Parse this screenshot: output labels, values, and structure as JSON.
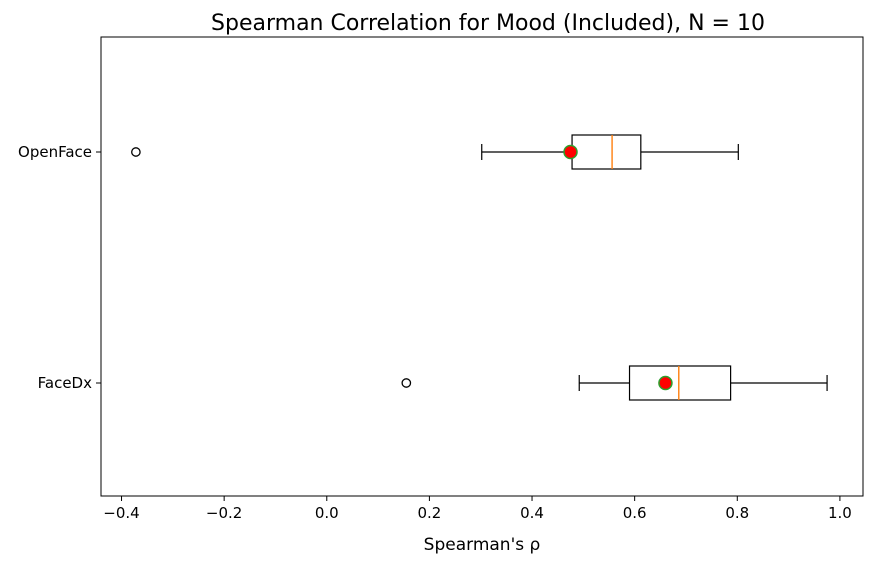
{
  "chart_data": {
    "type": "boxplot",
    "orientation": "horizontal",
    "title": "Spearman Correlation for Mood (Included), N = 10",
    "xlabel": "Spearman's ρ",
    "ylabel": "",
    "xlim": [
      -0.44,
      1.045
    ],
    "x_ticks": [
      -0.4,
      -0.2,
      0.0,
      0.2,
      0.4,
      0.6,
      0.8,
      1.0
    ],
    "x_tick_labels": [
      "−0.4",
      "−0.2",
      "0.0",
      "0.2",
      "0.4",
      "0.6",
      "0.8",
      "1.0"
    ],
    "grid": false,
    "legend": "none",
    "categories": [
      "FaceDx",
      "OpenFace"
    ],
    "boxes": [
      {
        "label": "FaceDx",
        "whisker_low": 0.492,
        "q1": 0.59,
        "median": 0.686,
        "q3": 0.787,
        "whisker_high": 0.975,
        "mean": 0.66,
        "outliers": [
          0.155
        ]
      },
      {
        "label": "OpenFace",
        "whisker_low": 0.302,
        "q1": 0.478,
        "median": 0.556,
        "q3": 0.612,
        "whisker_high": 0.802,
        "mean": 0.475,
        "outliers": [
          -0.372
        ]
      }
    ],
    "colors": {
      "box_edge": "#000000",
      "median_line": "#ff7f0e",
      "mean_fill": "#ff0000",
      "mean_edge": "#2ca02c",
      "outlier_edge": "#000000",
      "axis": "#000000",
      "background": "#ffffff"
    }
  }
}
